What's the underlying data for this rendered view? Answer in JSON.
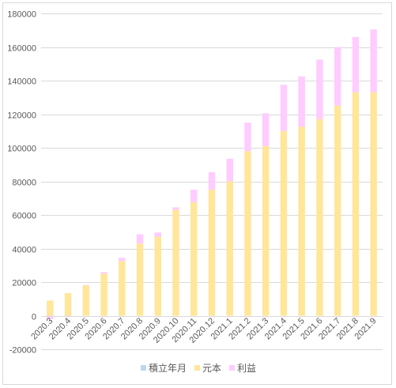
{
  "chart_data": {
    "type": "bar",
    "stacked": true,
    "categories": [
      "2020.3",
      "2020.4",
      "2020.5",
      "2020.6",
      "2020.7",
      "2020.8",
      "2020.9",
      "2020.10",
      "2020.11",
      "2020.12",
      "2021.1",
      "2021.2",
      "2021.3",
      "2021.4",
      "2021.5",
      "2021.6",
      "2021.7",
      "2021.8",
      "2021.9"
    ],
    "series": [
      {
        "name": "積立年月",
        "color": "#bdd7ee",
        "values": [
          0,
          0,
          0,
          0,
          0,
          0,
          0,
          0,
          0,
          0,
          0,
          0,
          0,
          0,
          0,
          0,
          0,
          0,
          0
        ]
      },
      {
        "name": "元本",
        "color": "#ffe699",
        "values": [
          9000,
          13500,
          18000,
          25000,
          32500,
          43000,
          47000,
          63000,
          67500,
          75000,
          80000,
          98000,
          101000,
          110000,
          112500,
          117000,
          125000,
          133000,
          133000
        ]
      },
      {
        "name": "利益",
        "color": "#ffccff",
        "values": [
          -2000,
          -500,
          300,
          1000,
          2000,
          5500,
          2500,
          1500,
          7500,
          10500,
          13500,
          17000,
          19500,
          27500,
          30000,
          35500,
          35000,
          33000,
          37500
        ]
      }
    ],
    "ylim": [
      -20000,
      180000
    ],
    "yticks": [
      -20000,
      0,
      20000,
      40000,
      60000,
      80000,
      100000,
      120000,
      140000,
      160000,
      180000
    ],
    "grid": true,
    "legend_position": "bottom"
  }
}
